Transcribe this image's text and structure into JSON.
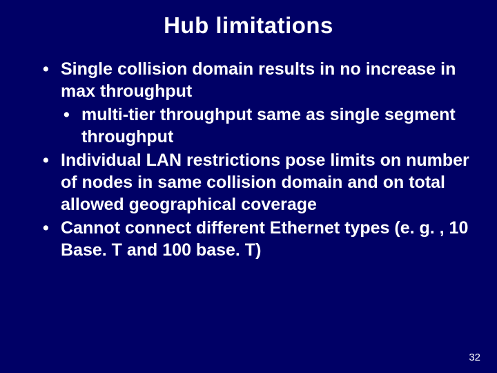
{
  "slide": {
    "title": "Hub limitations",
    "background_color": "#000066",
    "text_color": "#ffffff",
    "title_fontsize": 33,
    "body_fontsize": 25,
    "font_family": "Arial",
    "font_weight": "bold",
    "bullets": [
      {
        "text": "Single collision domain results in no increase in max throughput",
        "sub": [
          {
            "text": "multi-tier throughput same as single segment throughput"
          }
        ]
      },
      {
        "text": "Individual LAN restrictions pose limits on number of nodes in same collision domain and on total allowed geographical coverage"
      },
      {
        "text": "Cannot connect different Ethernet types (e. g. , 10 Base. T and 100 base. T)"
      }
    ],
    "page_number": "32"
  }
}
